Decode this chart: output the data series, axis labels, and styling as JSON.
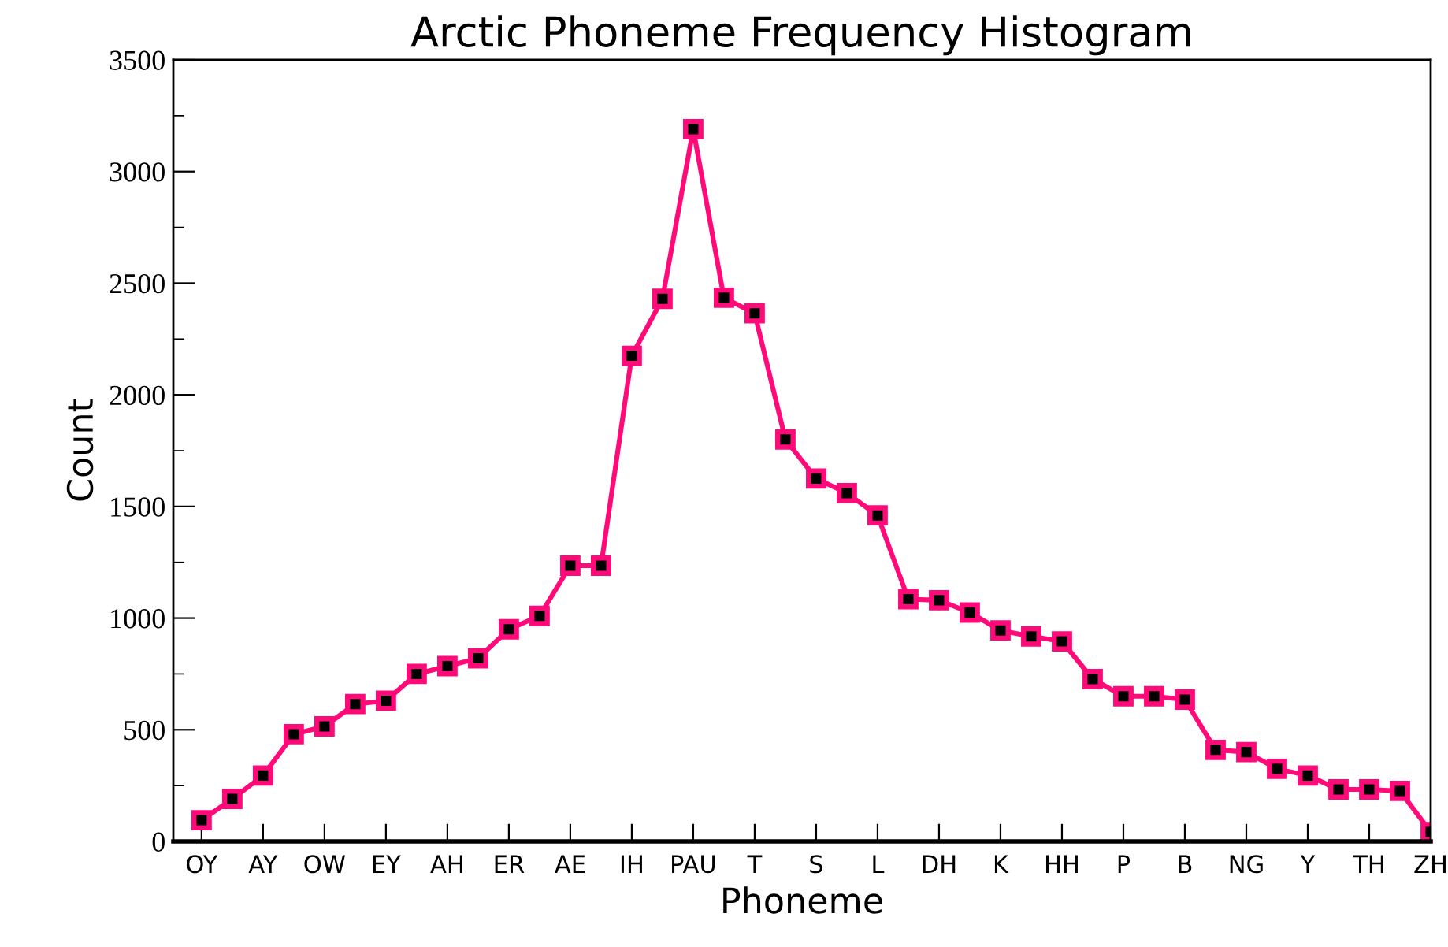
{
  "chart_data": {
    "type": "line",
    "title": "Arctic Phoneme Frequency Histogram",
    "xlabel": "Phoneme",
    "ylabel": "Count",
    "categories": [
      "OY",
      null,
      "AY",
      null,
      "OW",
      null,
      "EY",
      null,
      "AH",
      null,
      "ER",
      null,
      "AE",
      null,
      "IH",
      null,
      "PAU",
      null,
      "T",
      null,
      "S",
      null,
      "L",
      null,
      "DH",
      null,
      "K",
      null,
      "HH",
      null,
      "P",
      null,
      "B",
      null,
      "NG",
      null,
      "Y",
      null,
      "TH",
      null,
      "ZH"
    ],
    "series": [
      {
        "color": "#ff0a78",
        "values": [
          95,
          190,
          295,
          480,
          515,
          615,
          630,
          750,
          785,
          820,
          950,
          1010,
          1235,
          1235,
          2175,
          2430,
          3190,
          2435,
          2365,
          1800,
          1625,
          1560,
          1460,
          1085,
          1080,
          1025,
          945,
          918,
          896,
          727,
          650,
          650,
          635,
          410,
          400,
          325,
          295,
          233,
          233,
          226,
          42
        ]
      }
    ],
    "ylim": [
      0,
      3500
    ],
    "yticks": [
      0,
      {
        "value": 250,
        "label": null
      },
      500,
      {
        "value": 750,
        "label": null
      },
      1000,
      {
        "value": 1250,
        "label": null
      },
      1500,
      {
        "value": 1750,
        "label": null
      },
      2000,
      {
        "value": 2250,
        "label": null
      },
      2500,
      {
        "value": 2750,
        "label": null
      },
      3000,
      {
        "value": 3250,
        "label": null
      },
      3500
    ],
    "marker": "square",
    "line_style": "solid",
    "grid": false,
    "legend": false
  }
}
